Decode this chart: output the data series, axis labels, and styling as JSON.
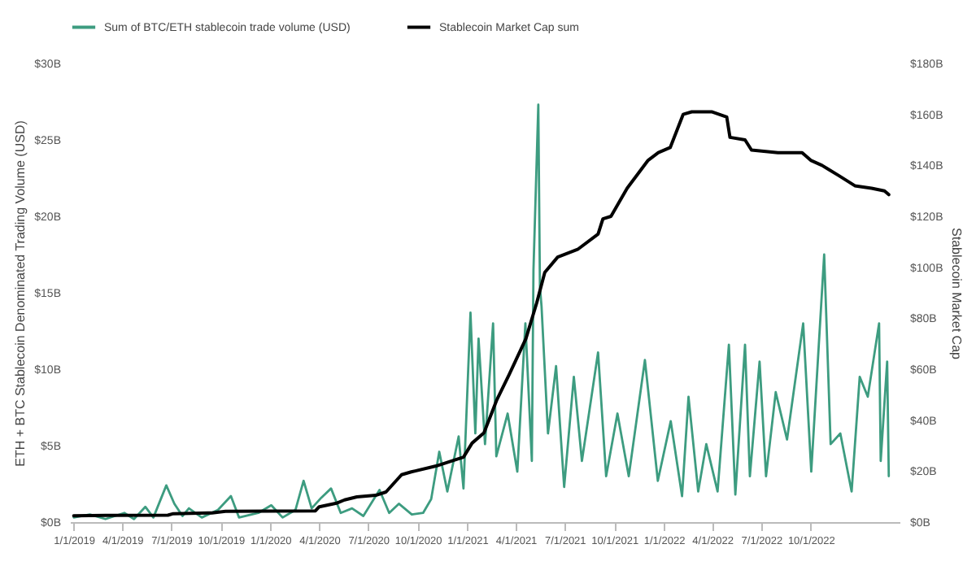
{
  "chart_data": {
    "type": "line",
    "ylabel": "ETH + BTC Stablecoin Denominated Trading Volume (USD)",
    "y2label": "Stablecoin Market Cap",
    "legend": "top",
    "xlim": [
      "2018-12-25",
      "2023-03-15"
    ],
    "xticks": [
      {
        "value": "2019-01-01",
        "label": "1/1/2019"
      },
      {
        "value": "2019-04-01",
        "label": "4/1/2019"
      },
      {
        "value": "2019-07-01",
        "label": "7/1/2019"
      },
      {
        "value": "2019-10-01",
        "label": "10/1/2019"
      },
      {
        "value": "2020-01-01",
        "label": "1/1/2020"
      },
      {
        "value": "2020-04-01",
        "label": "4/1/2020"
      },
      {
        "value": "2020-07-01",
        "label": "7/1/2020"
      },
      {
        "value": "2020-10-01",
        "label": "10/1/2020"
      },
      {
        "value": "2021-01-01",
        "label": "1/1/2021"
      },
      {
        "value": "2021-04-01",
        "label": "4/1/2021"
      },
      {
        "value": "2021-07-01",
        "label": "7/1/2021"
      },
      {
        "value": "2021-10-01",
        "label": "10/1/2021"
      },
      {
        "value": "2022-01-01",
        "label": "1/1/2022"
      },
      {
        "value": "2022-04-01",
        "label": "4/1/2022"
      },
      {
        "value": "2022-07-01",
        "label": "7/1/2022"
      },
      {
        "value": "2022-10-01",
        "label": "10/1/2022"
      }
    ],
    "ylim": [
      0,
      30
    ],
    "yticks": [
      {
        "value": 0,
        "label": "$0B"
      },
      {
        "value": 5,
        "label": "$5B"
      },
      {
        "value": 10,
        "label": "$10B"
      },
      {
        "value": 15,
        "label": "$15B"
      },
      {
        "value": 20,
        "label": "$20B"
      },
      {
        "value": 25,
        "label": "$25B"
      },
      {
        "value": 30,
        "label": "$30B"
      }
    ],
    "y2lim": [
      0,
      180
    ],
    "y2ticks": [
      {
        "value": 0,
        "label": "$0B"
      },
      {
        "value": 20,
        "label": "$20B"
      },
      {
        "value": 40,
        "label": "$40B"
      },
      {
        "value": 60,
        "label": "$60B"
      },
      {
        "value": 80,
        "label": "$80B"
      },
      {
        "value": 100,
        "label": "$100B"
      },
      {
        "value": 120,
        "label": "$120B"
      },
      {
        "value": 140,
        "label": "$140B"
      },
      {
        "value": 160,
        "label": "$160B"
      },
      {
        "value": 180,
        "label": "$180B"
      }
    ],
    "series": [
      {
        "name": "Sum of BTC/ETH stablecoin trade volume (USD)",
        "color": "#3d9c80",
        "axis": "y",
        "x": [
          "2019-01-01",
          "2019-01-31",
          "2019-03-01",
          "2019-04-05",
          "2019-04-23",
          "2019-05-14",
          "2019-05-29",
          "2019-06-22",
          "2019-07-07",
          "2019-07-22",
          "2019-08-03",
          "2019-08-27",
          "2019-09-26",
          "2019-10-20",
          "2019-11-04",
          "2019-12-10",
          "2020-01-03",
          "2020-01-24",
          "2020-02-17",
          "2020-03-03",
          "2020-03-18",
          "2020-04-05",
          "2020-04-23",
          "2020-05-11",
          "2020-06-01",
          "2020-06-22",
          "2020-07-22",
          "2020-08-09",
          "2020-08-27",
          "2020-09-20",
          "2020-10-11",
          "2020-10-26",
          "2020-11-10",
          "2020-11-25",
          "2020-12-16",
          "2020-12-25",
          "2021-01-07",
          "2021-01-16",
          "2021-01-22",
          "2021-02-03",
          "2021-02-18",
          "2021-02-24",
          "2021-03-17",
          "2021-04-04",
          "2021-04-19",
          "2021-05-01",
          "2021-05-04",
          "2021-05-13",
          "2021-05-16",
          "2021-05-19",
          "2021-05-31",
          "2021-06-15",
          "2021-06-30",
          "2021-07-18",
          "2021-08-02",
          "2021-09-01",
          "2021-09-16",
          "2021-10-07",
          "2021-10-28",
          "2021-11-27",
          "2021-12-21",
          "2022-01-14",
          "2022-02-04",
          "2022-02-16",
          "2022-03-06",
          "2022-03-21",
          "2022-04-11",
          "2022-05-02",
          "2022-05-14",
          "2022-06-01",
          "2022-06-10",
          "2022-06-28",
          "2022-07-10",
          "2022-07-28",
          "2022-08-18",
          "2022-09-17",
          "2022-10-02",
          "2022-10-26",
          "2022-11-07",
          "2022-11-25",
          "2022-12-16",
          "2022-12-31",
          "2023-01-15",
          "2023-02-05",
          "2023-02-08",
          "2023-02-20",
          "2023-02-23"
        ],
        "values": [
          0.3,
          0.5,
          0.2,
          0.6,
          0.2,
          1.0,
          0.3,
          2.4,
          1.2,
          0.4,
          0.9,
          0.3,
          0.8,
          1.7,
          0.3,
          0.6,
          1.1,
          0.3,
          0.8,
          2.7,
          0.9,
          1.6,
          2.2,
          0.6,
          0.9,
          0.4,
          2.1,
          0.6,
          1.2,
          0.5,
          0.6,
          1.5,
          4.6,
          2.0,
          5.6,
          2.2,
          13.7,
          5.8,
          12.0,
          5.1,
          13.0,
          4.3,
          7.1,
          3.3,
          13.0,
          4.0,
          16.5,
          27.3,
          15.4,
          14.1,
          5.8,
          10.2,
          2.3,
          9.5,
          4.0,
          11.1,
          3.0,
          7.1,
          3.0,
          10.6,
          2.7,
          6.6,
          1.7,
          8.2,
          2.0,
          5.1,
          2.0,
          11.6,
          1.8,
          11.6,
          3.0,
          10.5,
          3.0,
          8.5,
          5.4,
          13.0,
          3.3,
          17.5,
          5.1,
          5.8,
          2.0,
          9.5,
          8.2,
          13.0,
          4.0,
          10.5,
          3.0
        ]
      },
      {
        "name": "Stablecoin Market Cap sum",
        "color": "#000000",
        "axis": "y2",
        "x": [
          "2019-01-01",
          "2019-03-01",
          "2019-06-25",
          "2019-07-05",
          "2019-09-15",
          "2019-10-10",
          "2019-12-31",
          "2020-03-25",
          "2020-04-01",
          "2020-05-03",
          "2020-05-18",
          "2020-06-10",
          "2020-07-15",
          "2020-08-03",
          "2020-09-01",
          "2020-09-19",
          "2020-11-04",
          "2020-12-25",
          "2021-01-10",
          "2021-02-01",
          "2021-02-25",
          "2021-03-20",
          "2021-04-20",
          "2021-05-10",
          "2021-05-25",
          "2021-06-18",
          "2021-07-25",
          "2021-09-01",
          "2021-09-10",
          "2021-09-25",
          "2021-10-25",
          "2021-12-03",
          "2021-12-22",
          "2022-01-13",
          "2022-02-06",
          "2022-02-22",
          "2022-04-01",
          "2022-04-28",
          "2022-05-04",
          "2022-06-01",
          "2022-06-13",
          "2022-08-01",
          "2022-09-15",
          "2022-10-01",
          "2022-10-22",
          "2022-11-22",
          "2022-12-22",
          "2023-01-22",
          "2023-02-15",
          "2023-02-23"
        ],
        "values": [
          2.5,
          2.6,
          2.7,
          3.3,
          3.6,
          4.2,
          4.3,
          4.4,
          6.0,
          7.4,
          8.7,
          9.9,
          10.5,
          11.8,
          18.6,
          19.7,
          22.0,
          25.5,
          31.0,
          35.0,
          48.0,
          58.0,
          72.0,
          86.0,
          98.0,
          104.0,
          107.0,
          113.0,
          119.0,
          120.0,
          131.0,
          142.0,
          145.0,
          147.0,
          160.0,
          161.0,
          161.0,
          159.0,
          151.0,
          150.0,
          146.0,
          145.0,
          145.0,
          142.0,
          140.0,
          136.0,
          132.0,
          131.0,
          130.0,
          128.5
        ]
      }
    ]
  }
}
